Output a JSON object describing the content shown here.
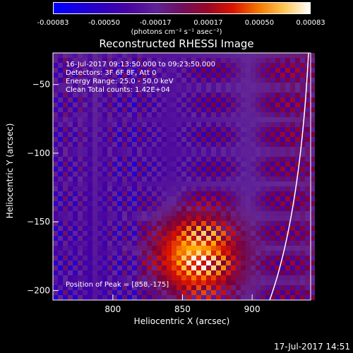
{
  "colorbar": {
    "ticks": [
      "-0.00083",
      "-0.00050",
      "-0.00017",
      "0.00017",
      "0.00050",
      "0.00083"
    ],
    "unit": "(photons cm⁻² s⁻¹ asec⁻²)",
    "range": [
      -0.00083,
      0.00083
    ]
  },
  "chart_data": {
    "type": "heatmap",
    "title": "Reconstructed RHESSI Image",
    "xlabel": "Heliocentric X (arcsec)",
    "ylabel": "Heliocentric Y (arcsec)",
    "xlim": [
      757,
      942
    ],
    "ylim": [
      -207,
      -27
    ],
    "xticks": [
      800,
      850,
      900
    ],
    "yticks": [
      -50,
      -100,
      -150,
      -200
    ],
    "peak": [
      858,
      -175
    ],
    "annotations": [
      "16-Jul-2017 09:13:50.000 to 09:23:50.000",
      "Detectors: 3F 6F 8F, Att 0",
      "Energy Range: 25.0 - 50.0 keV",
      "Clean     Total counts: 1.42E+04"
    ],
    "peak_label": "Position of Peak = [858,-175]",
    "limb_color": "#ffffff"
  },
  "footer": "17-Jul-2017 14:51"
}
